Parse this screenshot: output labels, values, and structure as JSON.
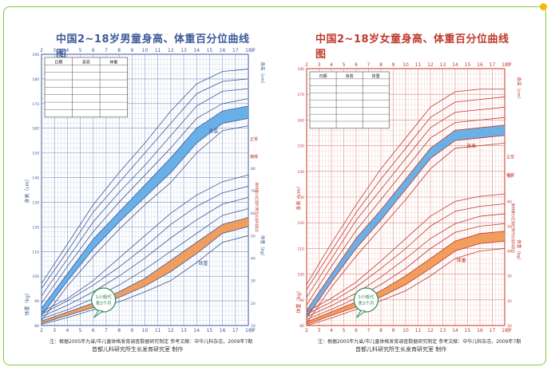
{
  "page": {
    "accent_colors": {
      "frame": "#8cc63f",
      "dot": "#f5b800",
      "boys": "#3d5a99",
      "girls": "#c0392b",
      "band_height": "#5aa9e6",
      "band_weight": "#f0944d"
    }
  },
  "boys": {
    "title": "中国2~18岁男童身高、体重百分位曲线图",
    "year_unit": "岁",
    "label_height": "身高",
    "label_weight": "体重",
    "axis_height_label": "身高（cm）",
    "axis_weight_label": "体重（kg）",
    "right_height_unit": "身高（cm）",
    "right_weight_unit": "体重（kg）",
    "side_notes": [
      "正常",
      "偏矮",
      "身材矮小应及时到内分泌科就诊"
    ],
    "table_headers": [
      "日期",
      "身高",
      "体重"
    ],
    "badge": [
      "1小格代",
      "表3个月"
    ],
    "badge_sub": "",
    "footnote": "注：根据2005年九省/市儿童体格发育调查数据研究制定    参考文献：中华儿科杂志，2009年7期",
    "credit": "首都儿科研究所生长发育研究室 制作",
    "colors": {
      "stroke": "#3d5a99",
      "grid": "#b9c6e0",
      "grid_major": "#7f93c4"
    }
  },
  "girls": {
    "title": "中国2~18岁女童身高、体重百分位曲线图",
    "year_unit": "岁",
    "label_height": "身高",
    "label_weight": "体重",
    "axis_height_label": "身高（cm）",
    "axis_weight_label": "体重（kg）",
    "right_height_unit": "身高（cm）",
    "right_weight_unit": "体重（kg）",
    "side_notes": [
      "正常",
      "偏矮",
      "身材矮小应及时到内分泌科就诊"
    ],
    "table_headers": [
      "日期",
      "身高",
      "体重"
    ],
    "badge": [
      "1小格代",
      "表3个月"
    ],
    "badge_sub": "",
    "footnote": "注：根据2005年九省/市儿童体格发育调查数据研究制定    参考文献：中华儿科杂志，2009年7期",
    "credit": "首都儿科研究所生长发育研究室 制作",
    "colors": {
      "stroke": "#c0392b",
      "grid": "#f0c0b8",
      "grid_major": "#d98a80"
    }
  },
  "chart_data": [
    {
      "type": "line",
      "title": "中国2~18岁男童身高、体重百分位曲线图",
      "xlabel": "岁",
      "xlim": [
        2,
        18
      ],
      "x_ticks": [
        2,
        3,
        4,
        5,
        6,
        7,
        8,
        9,
        10,
        11,
        12,
        13,
        14,
        15,
        16,
        17,
        18
      ],
      "height_ylim": [
        80,
        190
      ],
      "height_ticks": [
        80,
        90,
        100,
        110,
        120,
        130,
        140,
        150,
        160,
        170,
        180,
        190
      ],
      "weight_ylim": [
        10,
        80
      ],
      "weight_ticks": [
        10,
        20,
        30,
        40,
        50,
        60,
        70,
        80
      ],
      "x": [
        2,
        4,
        6,
        8,
        10,
        12,
        14,
        16,
        18
      ],
      "height_series": [
        {
          "values": [
            82,
            96,
            108,
            119,
            129,
            138,
            150,
            159,
            161
          ]
        },
        {
          "values": [
            84,
            98,
            111,
            122,
            132,
            142,
            154,
            162,
            164
          ]
        },
        {
          "values": [
            87,
            101,
            115,
            126,
            137,
            148,
            160,
            167,
            169
          ]
        },
        {
          "values": [
            89,
            104,
            118,
            130,
            141,
            152,
            164,
            170,
            172
          ]
        },
        {
          "values": [
            92,
            107,
            122,
            134,
            145,
            157,
            169,
            175,
            176
          ]
        },
        {
          "values": [
            95,
            110,
            126,
            138,
            150,
            162,
            174,
            179,
            180
          ]
        },
        {
          "values": [
            97,
            113,
            129,
            142,
            154,
            167,
            178,
            183,
            184
          ]
        }
      ],
      "weight_series": [
        {
          "values": [
            10.5,
            13.5,
            17,
            20.5,
            25,
            30,
            38,
            47,
            50
          ]
        },
        {
          "values": [
            11,
            14.5,
            18,
            22.5,
            27.5,
            34,
            42,
            51,
            54
          ]
        },
        {
          "values": [
            12,
            16,
            20,
            25,
            31,
            39,
            47,
            55,
            58
          ]
        },
        {
          "values": [
            13,
            17,
            22,
            28,
            35,
            43,
            51,
            59,
            62
          ]
        },
        {
          "values": [
            14,
            19,
            25,
            32,
            40,
            49,
            57,
            64,
            67
          ]
        },
        {
          "values": [
            15,
            21,
            28,
            36,
            45,
            55,
            63,
            69,
            72
          ]
        },
        {
          "values": [
            16,
            22,
            30,
            40,
            50,
            60,
            68,
            74,
            77
          ]
        }
      ],
      "band_height": {
        "lower": [
          84,
          98,
          111,
          122,
          132,
          142,
          154,
          162,
          164
        ],
        "upper": [
          87,
          101,
          115,
          126,
          137,
          148,
          160,
          167,
          169
        ]
      },
      "band_weight": {
        "lower": [
          11,
          14.5,
          18,
          22.5,
          27.5,
          34,
          42,
          51,
          54
        ],
        "upper": [
          12,
          16,
          20,
          25,
          31,
          39,
          47,
          55,
          58
        ]
      }
    },
    {
      "type": "line",
      "title": "中国2~18岁女童身高、体重百分位曲线图",
      "xlabel": "岁",
      "xlim": [
        2,
        18
      ],
      "x_ticks": [
        2,
        3,
        4,
        5,
        6,
        7,
        8,
        9,
        10,
        11,
        12,
        13,
        14,
        15,
        16,
        17,
        18
      ],
      "height_ylim": [
        80,
        180
      ],
      "height_ticks": [
        80,
        90,
        100,
        110,
        120,
        130,
        140,
        150,
        160,
        170,
        180
      ],
      "weight_ylim": [
        10,
        70
      ],
      "weight_ticks": [
        10,
        20,
        30,
        40,
        50,
        60,
        70
      ],
      "x": [
        2,
        4,
        6,
        8,
        10,
        12,
        14,
        16,
        18
      ],
      "height_series": [
        {
          "values": [
            81,
            95,
            107,
            118,
            129,
            141,
            149,
            150,
            151
          ]
        },
        {
          "values": [
            83,
            97,
            110,
            121,
            133,
            145,
            152,
            153,
            154
          ]
        },
        {
          "values": [
            86,
            100,
            114,
            125,
            137,
            149,
            156,
            157,
            158
          ]
        },
        {
          "values": [
            88,
            103,
            117,
            129,
            141,
            153,
            159,
            160,
            161
          ]
        },
        {
          "values": [
            91,
            106,
            121,
            133,
            145,
            157,
            163,
            164,
            165
          ]
        },
        {
          "values": [
            94,
            109,
            124,
            137,
            149,
            161,
            167,
            168,
            169
          ]
        },
        {
          "values": [
            96,
            112,
            127,
            141,
            153,
            165,
            171,
            172,
            172
          ]
        }
      ],
      "weight_series": [
        {
          "values": [
            10,
            13,
            16.5,
            20,
            24,
            30,
            37,
            40,
            41
          ]
        },
        {
          "values": [
            10.5,
            14,
            17.5,
            21.5,
            26.5,
            33,
            40,
            43,
            44
          ]
        },
        {
          "values": [
            11.5,
            15.5,
            19.5,
            24,
            30,
            37,
            44,
            47,
            48
          ]
        },
        {
          "values": [
            12.5,
            16.5,
            21,
            26.5,
            33,
            41,
            47.5,
            50,
            51
          ]
        },
        {
          "values": [
            13.5,
            18,
            23,
            29.5,
            37,
            45,
            51,
            54,
            55
          ]
        },
        {
          "values": [
            14.5,
            19.5,
            25.5,
            33,
            41,
            50,
            56,
            58,
            59
          ]
        },
        {
          "values": [
            15.5,
            21,
            27.5,
            36,
            45,
            54,
            60,
            62,
            63
          ]
        }
      ],
      "band_height": {
        "lower": [
          83,
          97,
          110,
          121,
          133,
          145,
          152,
          153,
          154
        ],
        "upper": [
          86,
          100,
          114,
          125,
          137,
          149,
          156,
          157,
          158
        ]
      },
      "band_weight": {
        "lower": [
          10.5,
          14,
          17.5,
          21.5,
          26.5,
          33,
          40,
          43,
          44
        ],
        "upper": [
          11.5,
          15.5,
          19.5,
          24,
          30,
          37,
          44,
          47,
          48
        ]
      }
    }
  ]
}
